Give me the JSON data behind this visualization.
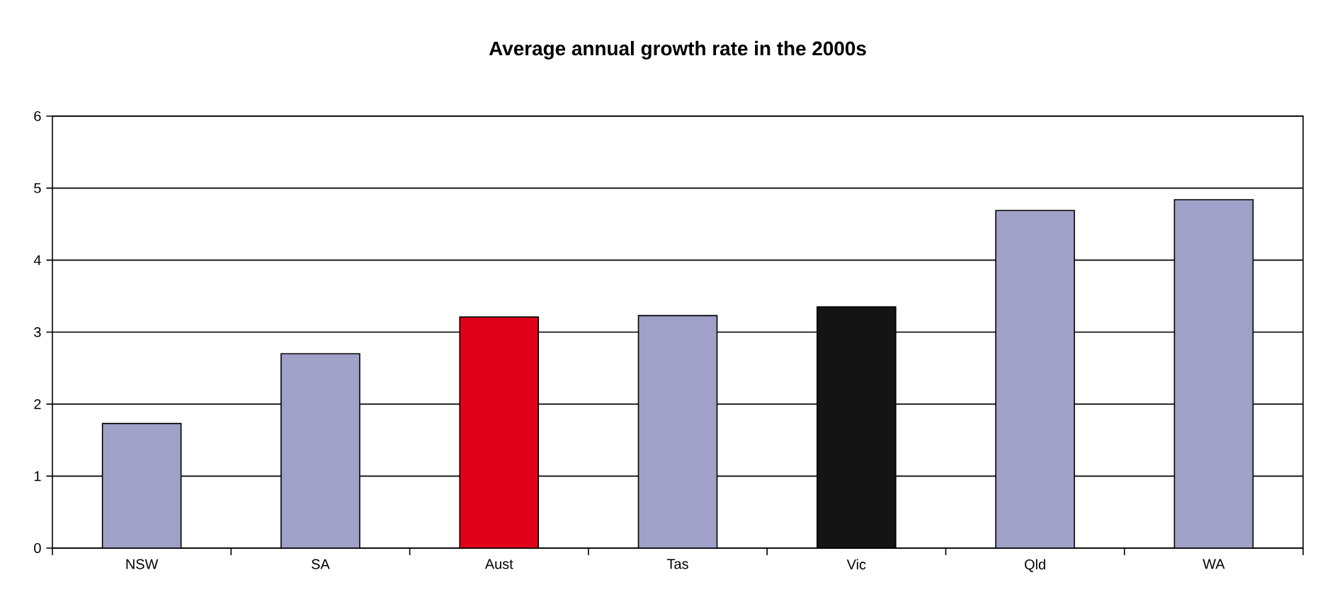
{
  "chart_data": {
    "type": "bar",
    "title": "Average annual growth rate in the 2000s",
    "categories": [
      "NSW",
      "SA",
      "Aust",
      "Tas",
      "Vic",
      "Qld",
      "WA"
    ],
    "values": [
      1.73,
      2.7,
      3.21,
      3.23,
      3.35,
      4.69,
      4.84
    ],
    "colors": [
      "#a0a0c8",
      "#a0a0c8",
      "#e0001a",
      "#a0a0c8",
      "#141414",
      "#a0a0c8",
      "#a0a0c8"
    ],
    "ylim": [
      0,
      6
    ],
    "yticks": [
      0,
      1,
      2,
      3,
      4,
      5,
      6
    ],
    "grid": "y"
  }
}
